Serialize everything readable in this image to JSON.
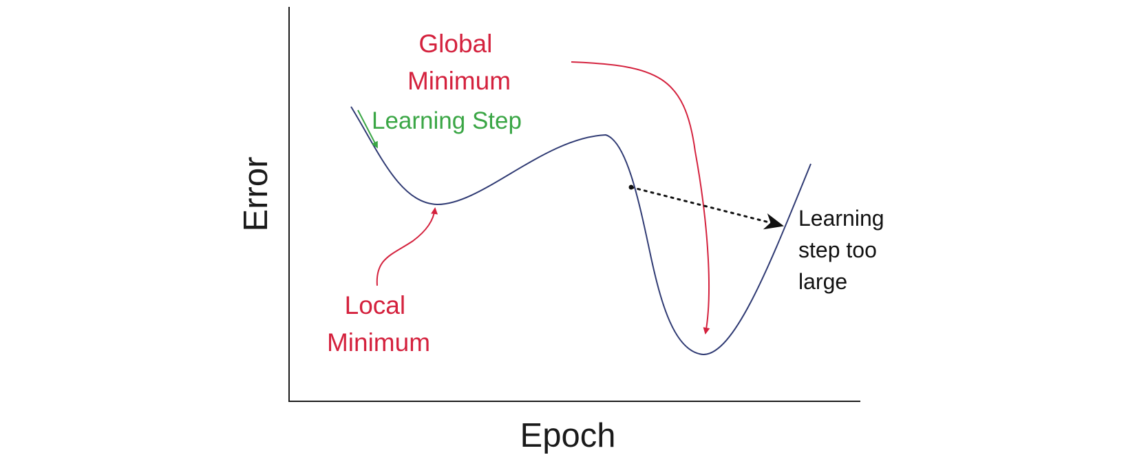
{
  "axes": {
    "xlabel": "Epoch",
    "ylabel": "Error"
  },
  "labels": {
    "global_minimum": [
      "Global",
      "Minimum"
    ],
    "local_minimum": [
      "Local",
      "Minimum"
    ],
    "learning_step": "Learning Step",
    "step_too_large": [
      "Learning",
      "step too",
      "large"
    ]
  },
  "colors": {
    "curve": "#2f3a73",
    "axis": "#1a1a1a",
    "minimum_annotation": "#d4213d",
    "learning_step": "#3aa645",
    "step_too_large": "#111111"
  }
}
